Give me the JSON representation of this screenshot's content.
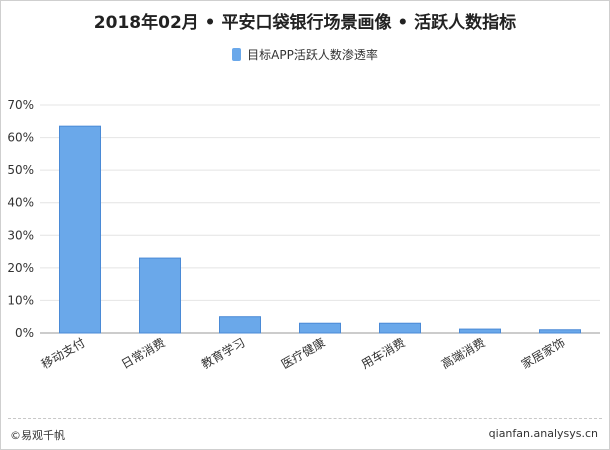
{
  "chart_data": {
    "type": "bar",
    "title": "2018年02月 • 平安口袋银行场景画像 • 活跃人数指标",
    "categories": [
      "移动支付",
      "日常消费",
      "教育学习",
      "医疗健康",
      "用车消费",
      "高端消费",
      "家居家饰"
    ],
    "series": [
      {
        "name": "目标APP活跃人数渗透率",
        "values": [
          63.5,
          23,
          5,
          3,
          3,
          1.2,
          1
        ],
        "color": "#6aa8ea"
      }
    ],
    "ylim": [
      0,
      70
    ],
    "yticks": [
      "0%",
      "10%",
      "20%",
      "30%",
      "40%",
      "50%",
      "60%",
      "70%"
    ],
    "grid": true,
    "legend_position": "top"
  },
  "footer": {
    "copyright": "©易观千帆",
    "site": "qianfan.analysys.cn"
  }
}
